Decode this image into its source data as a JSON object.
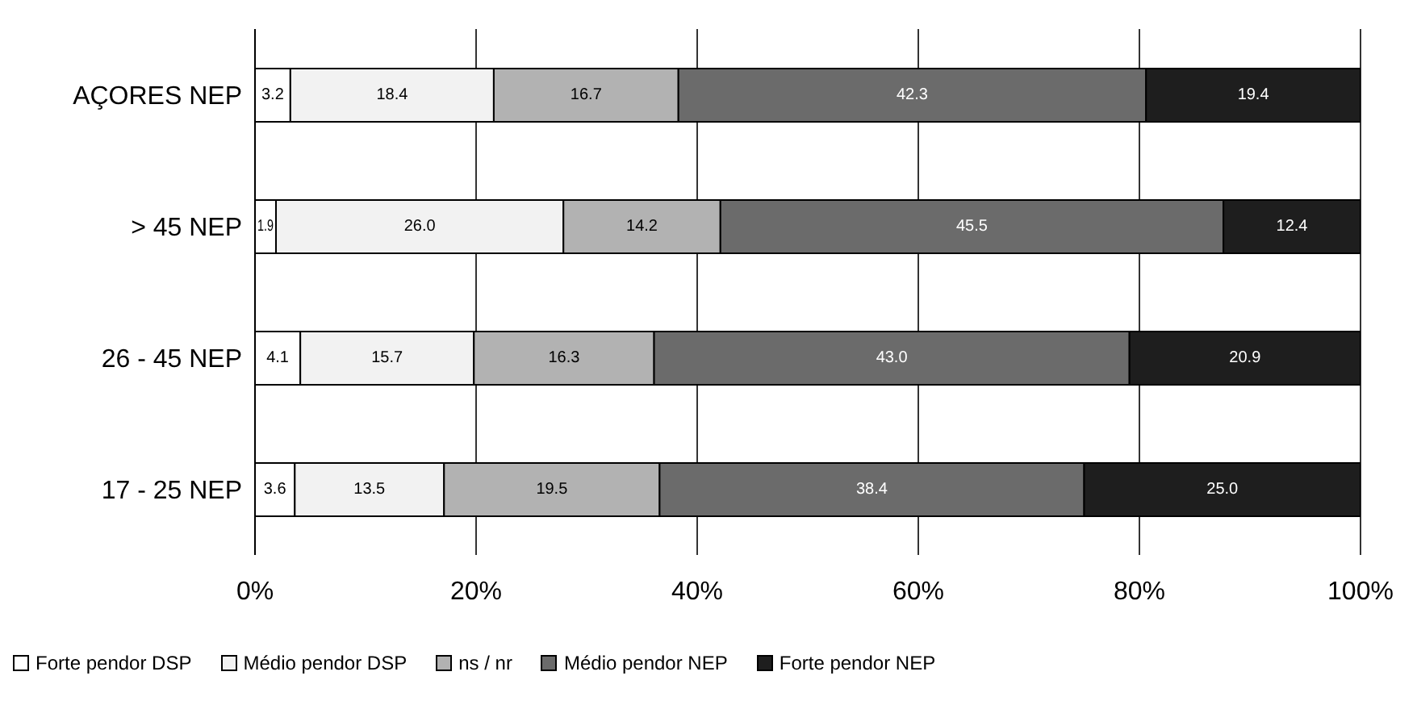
{
  "chart_data": {
    "type": "bar",
    "orientation": "horizontal",
    "stacked": true,
    "categories": [
      "AÇORES NEP",
      "> 45 NEP",
      "26 - 45 NEP",
      "17 - 25 NEP"
    ],
    "series": [
      {
        "name": "Forte pendor DSP",
        "color": "#ffffff",
        "values": [
          3.2,
          1.9,
          4.1,
          3.6
        ],
        "value_labels": [
          "3.2",
          "1.9",
          "4.1",
          "3.6"
        ]
      },
      {
        "name": "Médio pendor DSP",
        "color": "#f2f2f2",
        "values": [
          18.4,
          26.0,
          15.7,
          13.5
        ],
        "value_labels": [
          "18.4",
          "26.0",
          "15.7",
          "13.5"
        ]
      },
      {
        "name": "ns / nr",
        "color": "#b2b2b2",
        "values": [
          16.7,
          14.2,
          16.3,
          19.5
        ],
        "value_labels": [
          "16.7",
          "14.2",
          "16.3",
          "19.5"
        ]
      },
      {
        "name": "Médio pendor NEP",
        "color": "#6b6b6b",
        "values": [
          42.3,
          45.5,
          43.0,
          38.4
        ],
        "value_labels": [
          "42.3",
          "45.5",
          "43.0",
          "38.4"
        ]
      },
      {
        "name": "Forte pendor NEP",
        "color": "#1e1e1e",
        "values": [
          19.4,
          12.4,
          20.9,
          25.0
        ],
        "value_labels": [
          "19.4",
          "12.4",
          "20.9",
          "25.0"
        ]
      }
    ],
    "xlim": [
      0,
      100
    ],
    "xticks": [
      {
        "value": 0,
        "label": "0%"
      },
      {
        "value": 20,
        "label": "20%"
      },
      {
        "value": 40,
        "label": "40%"
      },
      {
        "value": 60,
        "label": "60%"
      },
      {
        "value": 80,
        "label": "80%"
      },
      {
        "value": 100,
        "label": "100%"
      }
    ],
    "grid": "x",
    "legend": "bottom"
  }
}
